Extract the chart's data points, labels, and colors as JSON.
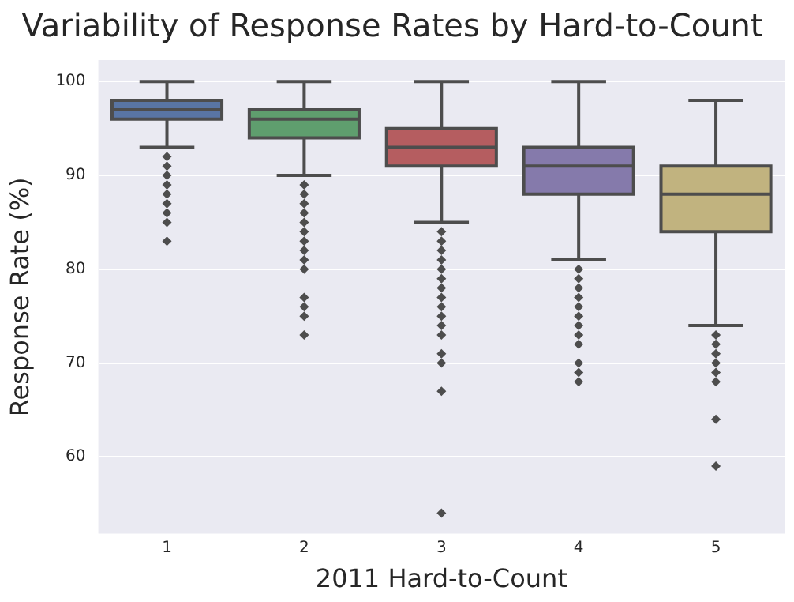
{
  "chart_data": {
    "type": "box",
    "title": "Variability of Response Rates by Hard-to-Count",
    "xlabel": "2011 Hard-to-Count",
    "ylabel": "Response Rate (%)",
    "categories": [
      "1",
      "2",
      "3",
      "4",
      "5"
    ],
    "colors": [
      "#5975a4",
      "#5f9e6e",
      "#b55d60",
      "#857aab",
      "#c1b37f"
    ],
    "ylim": [
      51.8,
      102.3
    ],
    "yticks": [
      60,
      70,
      80,
      90,
      100
    ],
    "grid": "y",
    "marker": "diamond",
    "boxes": [
      {
        "low": 93,
        "q1": 96,
        "median": 97,
        "q3": 98,
        "high": 100,
        "outliers": [
          92,
          91,
          90,
          89,
          88,
          87,
          86,
          85,
          83
        ]
      },
      {
        "low": 90,
        "q1": 94,
        "median": 96,
        "q3": 97,
        "high": 100,
        "outliers": [
          89,
          88,
          87,
          86,
          85,
          84,
          83,
          82,
          81,
          80,
          77,
          76,
          75,
          73
        ]
      },
      {
        "low": 85,
        "q1": 91,
        "median": 93,
        "q3": 95,
        "high": 100,
        "outliers": [
          84,
          83,
          82,
          81,
          80,
          79,
          78,
          77,
          76,
          75,
          74,
          73,
          71,
          70,
          67,
          54
        ]
      },
      {
        "low": 81,
        "q1": 88,
        "median": 91,
        "q3": 93,
        "high": 100,
        "outliers": [
          80,
          79,
          78,
          77,
          76,
          75,
          74,
          73,
          72,
          70,
          69,
          68
        ]
      },
      {
        "low": 74,
        "q1": 84,
        "median": 88,
        "q3": 91,
        "high": 98,
        "outliers": [
          73,
          72,
          71,
          70,
          69,
          68,
          64,
          59
        ]
      }
    ]
  }
}
